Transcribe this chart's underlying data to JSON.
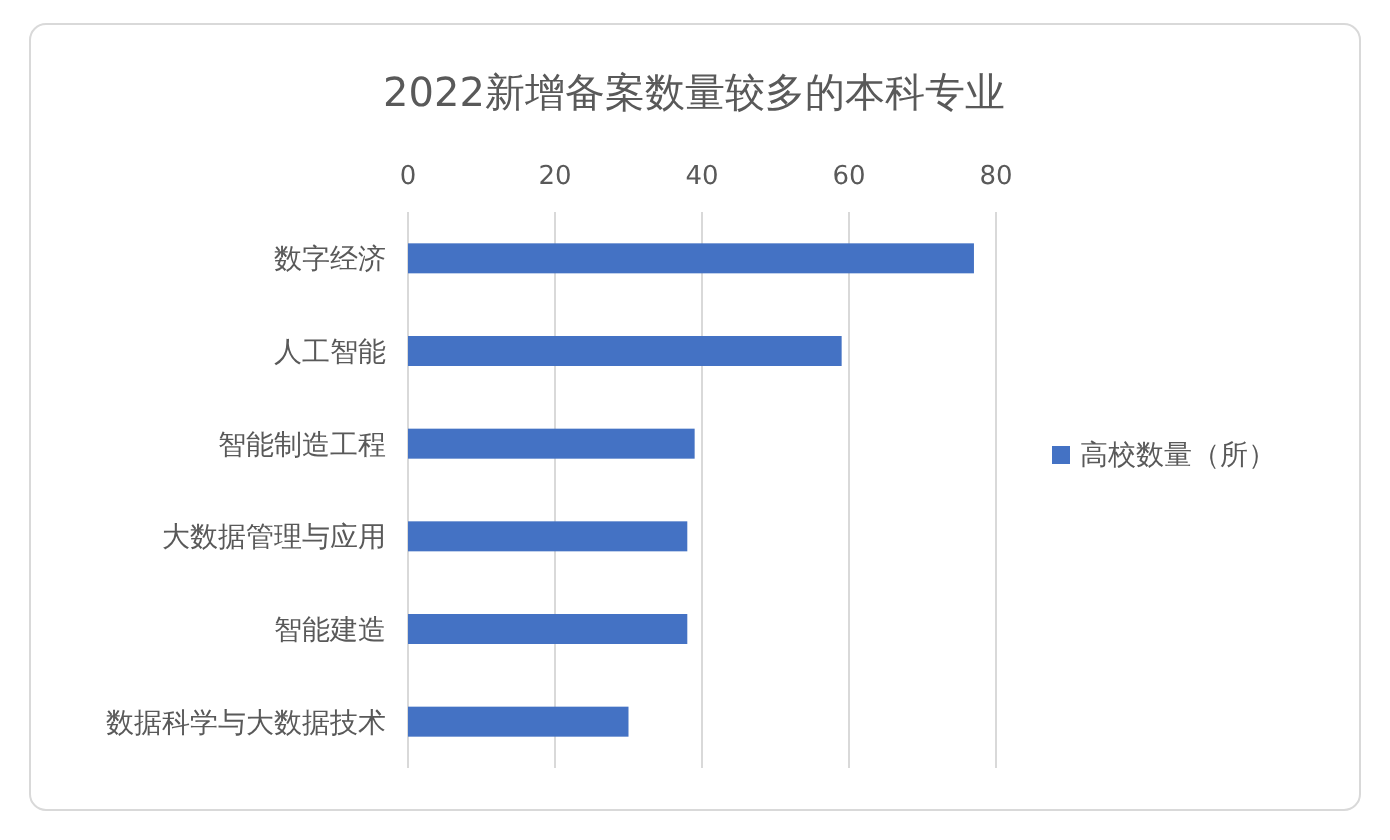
{
  "chart_data": {
    "type": "bar",
    "orientation": "horizontal",
    "title": "2022新增备案数量较多的本科专业",
    "categories": [
      "数字经济",
      "人工智能",
      "智能制造工程",
      "大数据管理与应用",
      "智能建造",
      "数据科学与大数据技术"
    ],
    "series": [
      {
        "name": "高校数量（所）",
        "color": "#4472c4",
        "values": [
          77,
          59,
          39,
          38,
          38,
          30
        ]
      }
    ],
    "xlim": [
      0,
      80
    ],
    "xticks": [
      0,
      20,
      40,
      60,
      80
    ],
    "grid": "x",
    "legend": "right"
  }
}
